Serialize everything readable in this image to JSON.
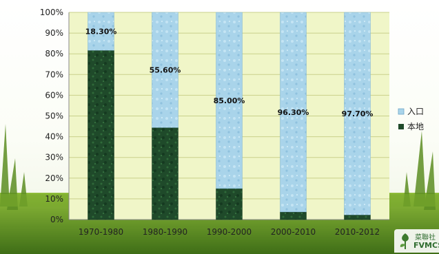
{
  "chart_data": {
    "type": "bar",
    "stacked": true,
    "categories": [
      "1970-1980",
      "1980-1990",
      "1990-2000",
      "2000-2010",
      "2010-2012"
    ],
    "series": [
      {
        "name": "本地",
        "values": [
          81.7,
          44.4,
          15.0,
          3.7,
          2.3
        ],
        "color": "#1f4a2a"
      },
      {
        "name": "入口",
        "values": [
          18.3,
          55.6,
          85.0,
          96.3,
          97.7
        ],
        "color": "#a9d4ea"
      }
    ],
    "data_labels": [
      "18.30%",
      "55.60%",
      "85.00%",
      "96.30%",
      "97.70%"
    ],
    "y_ticks": [
      "0%",
      "10%",
      "20%",
      "30%",
      "40%",
      "50%",
      "60%",
      "70%",
      "80%",
      "90%",
      "100%"
    ],
    "ylim": [
      0,
      100
    ],
    "legend": {
      "position": "right",
      "entries": [
        "入口",
        "本地"
      ]
    },
    "grid": true,
    "colors": {
      "plot_bg": "#f0f6c8",
      "local": "#1f4a2a",
      "import": "#a9d4ea",
      "grass": "#6a9a28"
    }
  },
  "logo": {
    "line1": "菜聯社",
    "line2": "FVMCS"
  }
}
